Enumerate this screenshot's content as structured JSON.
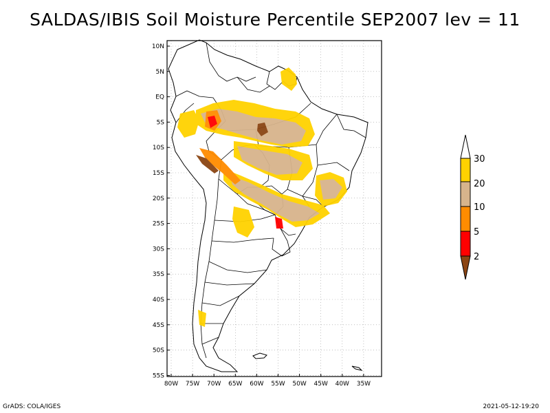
{
  "title": "SALDAS/IBIS Soil Moisture Percentile SEP2007 lev = 11",
  "footer": {
    "left": "GrADS: COLA/IGES",
    "right": "2021-05-12-19:20"
  },
  "map": {
    "region": "South America",
    "lat_labels": [
      "10N",
      "5N",
      "EQ",
      "5S",
      "10S",
      "15S",
      "20S",
      "25S",
      "30S",
      "35S",
      "40S",
      "45S",
      "50S",
      "55S"
    ],
    "lon_labels": [
      "80W",
      "75W",
      "70W",
      "65W",
      "60W",
      "55W",
      "50W",
      "45W",
      "40W",
      "35W"
    ]
  },
  "colorbar": {
    "labels": [
      "30",
      "20",
      "10",
      "5",
      "2"
    ],
    "colors": [
      "#ffffff",
      "#ffd200",
      "#d7b48c",
      "#ff8c00",
      "#ff0000",
      "#8b4513"
    ]
  }
}
